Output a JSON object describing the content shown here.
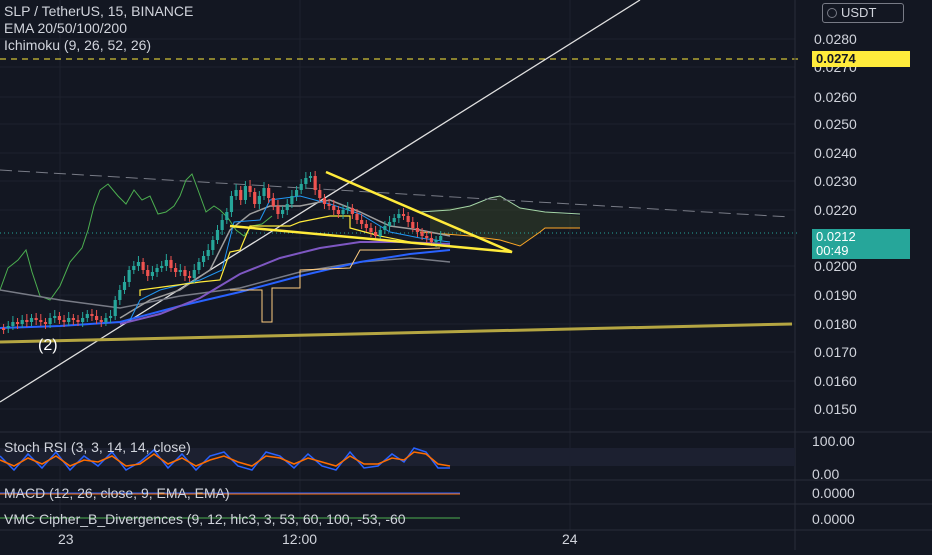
{
  "header": {
    "symbol_line": "SLP / TetherUS, 15, BINANCE",
    "ema_line": "EMA 20/50/100/200",
    "ichimoku_line": "Ichimoku (9, 26, 52, 26)"
  },
  "currency_button": "USDT",
  "price_axis": {
    "labels": [
      "0.0280",
      "0.0270",
      "0.0260",
      "0.0250",
      "0.0240",
      "0.0230",
      "0.0220",
      "0.0200",
      "0.0190",
      "0.0180",
      "0.0170",
      "0.0160",
      "0.0150"
    ],
    "alert_price": "0.0274",
    "current_price": "0.0212",
    "countdown": "00:49",
    "alert_color": "#ffeb3b",
    "current_color": "#26a69a"
  },
  "time_axis": {
    "labels": [
      "23",
      "12:00",
      "24"
    ]
  },
  "annotation_wave": "(2)",
  "indicators": {
    "stoch_title": "Stoch RSI (3, 3, 14, 14, close)",
    "stoch_axis": [
      "100.00",
      "0.00"
    ],
    "macd_title": "MACD (12, 26, close, 9, EMA, EMA)",
    "macd_axis": "0.0000",
    "vmc_title": "VMC Cipher_B_Divergences (9, 12, hlc3, 3, 53, 60, 100, -53, -60",
    "vmc_axis": "0.0000"
  },
  "colors": {
    "background": "#131722",
    "up_candle": "#26a69a",
    "down_candle": "#ef5350",
    "trendline": "#ffeb3b",
    "support_line": "#b5a642",
    "stoch_k": "#2962ff",
    "stoch_d": "#ff6d00"
  }
}
